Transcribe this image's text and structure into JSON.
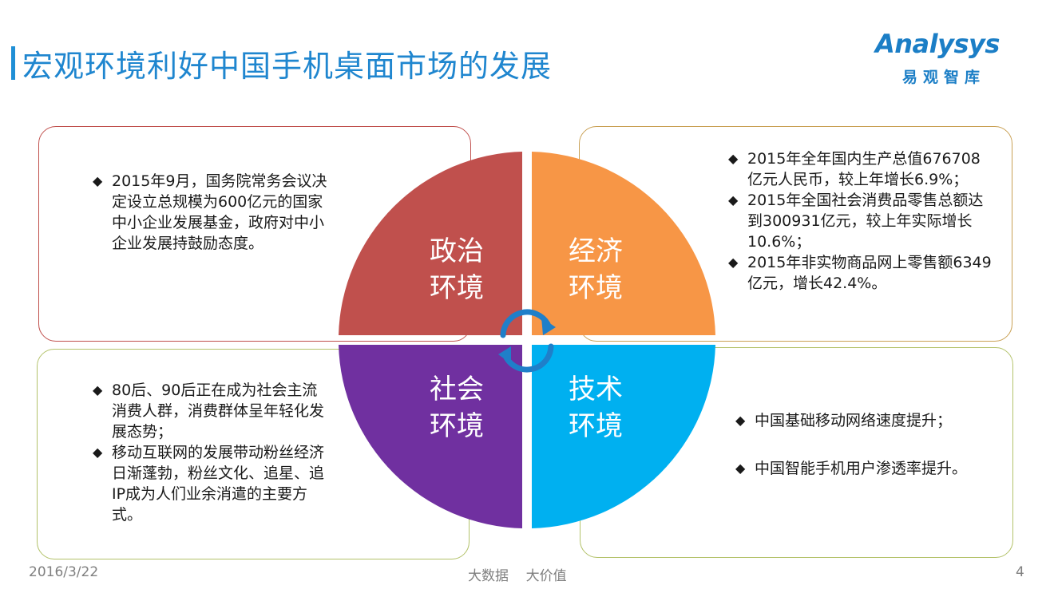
{
  "header": {
    "title": "宏观环境利好中国手机桌面市场的发展",
    "logo_en": "Analysys",
    "logo_cn": "易观智库"
  },
  "quadrants": {
    "political": {
      "label_line1": "政治",
      "label_line2": "环境",
      "color": "#c0504d"
    },
    "economic": {
      "label_line1": "经济",
      "label_line2": "环境",
      "color": "#f79646"
    },
    "social": {
      "label_line1": "社会",
      "label_line2": "环境",
      "color": "#7030a0"
    },
    "technology": {
      "label_line1": "技术",
      "label_line2": "环境",
      "color": "#00b0f0"
    }
  },
  "boxes": {
    "political": [
      "2015年9月，国务院常务会议决定设立总规模为600亿元的国家中小企业发展基金，政府对中小企业发展持鼓励态度。"
    ],
    "economic": [
      "2015年全年国内生产总值676708亿元人民币，较上年增长6.9%；",
      "2015年全国社会消费品零售总额达到300931亿元，较上年实际增长10.6%；",
      "2015年非实物商品网上零售额6349亿元，增长42.4%。"
    ],
    "social": [
      "80后、90后正在成为社会主流消费人群，消费群体呈年轻化发展态势；",
      "移动互联网的发展带动粉丝经济日渐蓬勃，粉丝文化、追星、追IP成为人们业余消遣的主要方式。"
    ],
    "technology": [
      "中国基础移动网络速度提升；",
      "中国智能手机用户渗透率提升。"
    ]
  },
  "footer": {
    "date": "2016/3/22",
    "slogan": "大数据    大价值",
    "page": "4"
  }
}
